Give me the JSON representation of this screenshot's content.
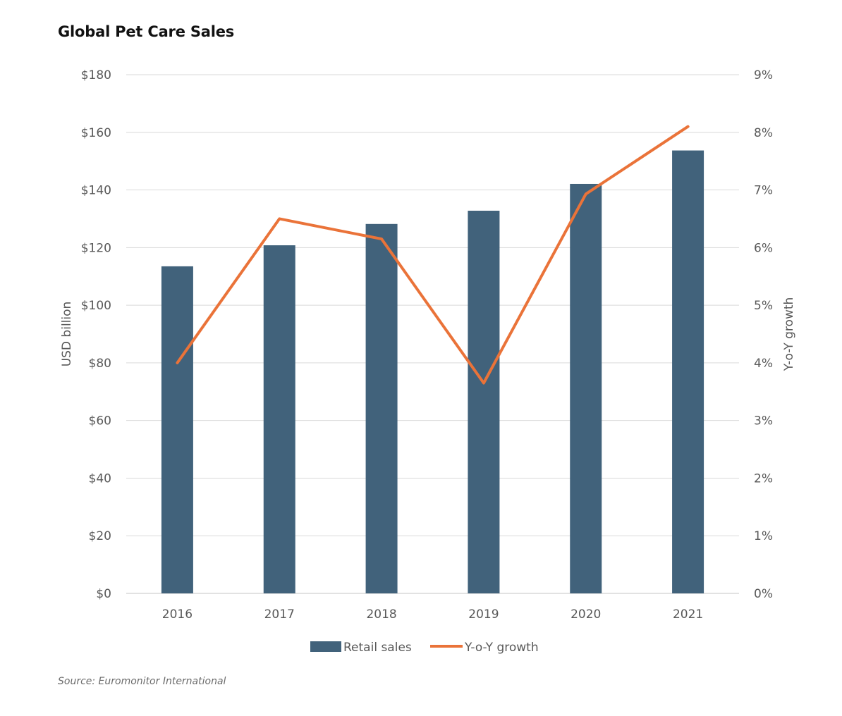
{
  "chart_data": {
    "type": "bar",
    "title": "Global Pet Care Sales",
    "categories": [
      "2016",
      "2017",
      "2018",
      "2019",
      "2020",
      "2021"
    ],
    "series": [
      {
        "name": "Retail sales",
        "type": "bar",
        "axis": "left",
        "values": [
          113.5,
          120.8,
          128.2,
          132.8,
          142.1,
          153.7
        ]
      },
      {
        "name": "Y-o-Y growth",
        "type": "line",
        "axis": "right",
        "values": [
          4.0,
          6.5,
          6.15,
          3.65,
          6.93,
          8.1
        ]
      }
    ],
    "ylabel": "USD billion",
    "ylabel_right": "Y-o-Y growth",
    "ylim": [
      0,
      180
    ],
    "ylim_right": [
      0,
      9
    ],
    "yticks": [
      "$0",
      "$20",
      "$40",
      "$60",
      "$80",
      "$100",
      "$120",
      "$140",
      "$160",
      "$180"
    ],
    "yticks_right": [
      "0%",
      "1%",
      "2%",
      "3%",
      "4%",
      "5%",
      "6%",
      "7%",
      "8%",
      "9%"
    ],
    "grid": true,
    "legend_position": "bottom",
    "colors": {
      "bar": "#41627b",
      "line": "#ea7339",
      "grid": "#d9d9d9",
      "text": "#595959"
    }
  },
  "source": "Source: Euromonitor International"
}
